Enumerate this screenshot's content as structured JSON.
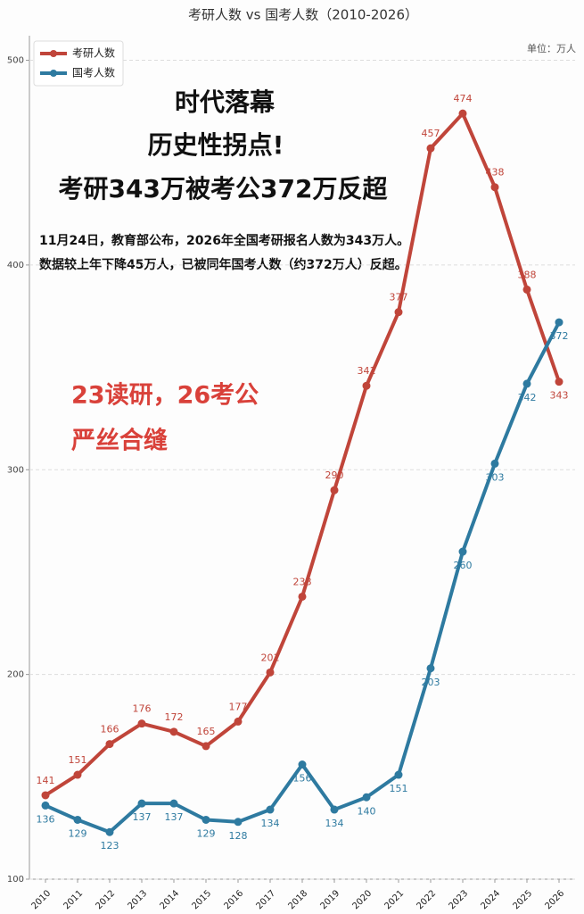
{
  "chart_data": {
    "type": "line",
    "title": "考研人数 vs 国考人数（2010-2026）",
    "unit_label": "单位：万人",
    "annotations": [
      "时代落幕",
      "历史性拐点!",
      "考研343万被考公372万反超",
      "11月24日，教育部公布，2026年全国考研报名人数为343万人。",
      "数据较上年下降45万人，已被同年国考人数（约372万人）反超。",
      "23读研，26考公",
      "严丝合缝"
    ],
    "x": [
      2010,
      2011,
      2012,
      2013,
      2014,
      2015,
      2016,
      2017,
      2018,
      2019,
      2020,
      2021,
      2022,
      2023,
      2024,
      2025,
      2026
    ],
    "series": [
      {
        "name": "考研人数",
        "color": "#c0453a",
        "values": [
          141,
          151,
          166,
          176,
          172,
          165,
          177,
          201,
          238,
          290,
          341,
          377,
          457,
          474,
          438,
          388,
          343
        ]
      },
      {
        "name": "国考人数",
        "color": "#2e7aa0",
        "values": [
          136,
          129,
          123,
          137,
          137,
          129,
          128,
          134,
          156,
          134,
          140,
          151,
          203,
          260,
          303,
          342,
          372
        ]
      }
    ],
    "xlim": [
      2009.5,
      2026.5
    ],
    "xticks": [
      2010,
      2011,
      2012,
      2013,
      2014,
      2015,
      2016,
      2017,
      2018,
      2019,
      2020,
      2021,
      2022,
      2023,
      2024,
      2025,
      2026
    ],
    "ylim": [
      100,
      512
    ],
    "yticks": [
      100,
      200,
      300,
      400,
      500
    ],
    "grid": true,
    "legend": "upper left"
  }
}
